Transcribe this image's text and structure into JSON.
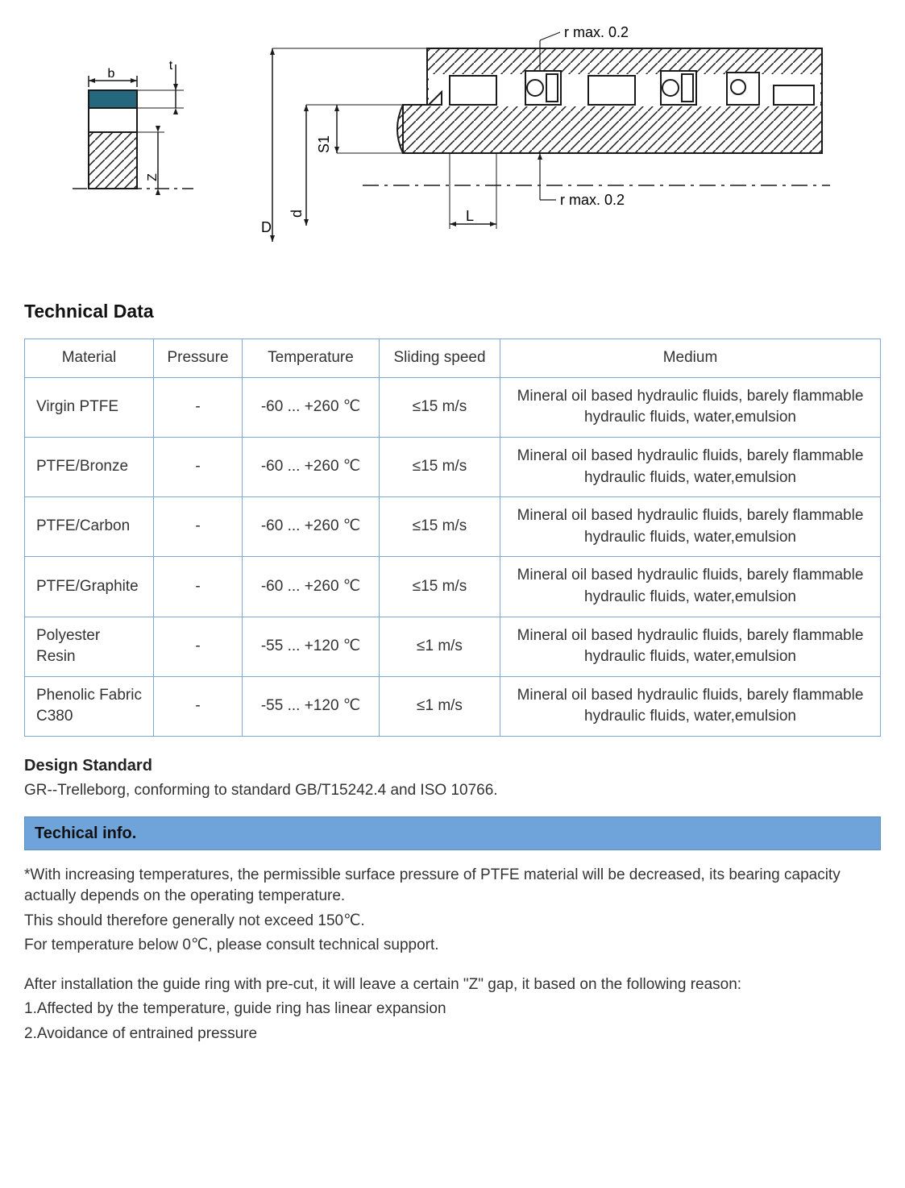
{
  "diagram": {
    "left": {
      "b": "b",
      "t": "t",
      "Z": "Z"
    },
    "right": {
      "r_top": "r max. 0.2",
      "r_bottom": "r max. 0.2",
      "D": "D",
      "d": "d",
      "S1": "S1",
      "L": "L"
    },
    "colors": {
      "line": "#1a1a1a",
      "fill_dark": "#25687d",
      "hatch": "#1a1a1a",
      "bg": "#ffffff"
    }
  },
  "headings": {
    "technical_data": "Technical Data",
    "design_standard": "Design Standard",
    "tech_info": "Techical info."
  },
  "table": {
    "columns": [
      "Material",
      "Pressure",
      "Temperature",
      "Sliding speed",
      "Medium"
    ],
    "rows": [
      [
        "Virgin PTFE",
        "-",
        "-60 ... +260 ℃",
        "≤15 m/s",
        "Mineral oil based hydraulic fluids, barely flammable hydraulic fluids, water,emulsion"
      ],
      [
        "PTFE/Bronze",
        "-",
        "-60 ... +260 ℃",
        "≤15 m/s",
        "Mineral oil based hydraulic fluids, barely flammable hydraulic fluids, water,emulsion"
      ],
      [
        "PTFE/Carbon",
        "-",
        "-60 ... +260 ℃",
        "≤15 m/s",
        "Mineral oil based hydraulic fluids, barely flammable hydraulic fluids, water,emulsion"
      ],
      [
        "PTFE/Graphite",
        "-",
        "-60 ... +260 ℃",
        "≤15 m/s",
        "Mineral oil based hydraulic fluids, barely flammable hydraulic fluids, water,emulsion"
      ],
      [
        "Polyester Resin",
        "-",
        "-55 ... +120 ℃",
        "≤1 m/s",
        "Mineral oil based hydraulic fluids, barely flammable hydraulic fluids, water,emulsion"
      ],
      [
        "Phenolic Fabric C380",
        "-",
        "-55 ... +120 ℃",
        "≤1 m/s",
        "Mineral oil based hydraulic fluids, barely flammable hydraulic fluids, water,emulsion"
      ]
    ],
    "border_color": "#7ea6d6"
  },
  "design_standard_text": "GR--Trelleborg, conforming to standard GB/T15242.4 and ISO 10766.",
  "tech_info_paragraphs": [
    "*With increasing temperatures, the permissible surface pressure of PTFE material will be decreased, its bearing capacity actually depends on the operating temperature.",
    "This should therefore generally not exceed 150℃.",
    "For temperature below 0℃, please consult technical support."
  ],
  "tech_info_after_gap": [
    "After installation the guide ring with pre-cut, it will leave a certain \"Z\" gap, it based on the following reason:",
    "1.Affected by the temperature, guide ring has linear expansion",
    "2.Avoidance of entrained pressure"
  ],
  "tech_info_bar_color": "#6fa4da"
}
